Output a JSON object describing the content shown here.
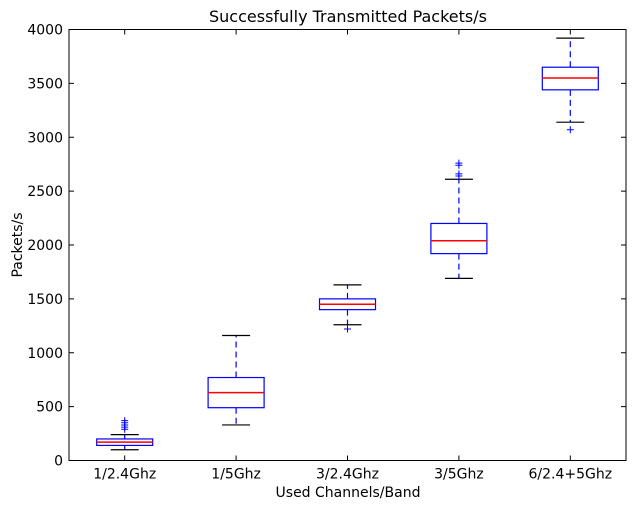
{
  "chart_data": {
    "type": "box",
    "title": "Successfully Transmitted Packets/s",
    "xlabel": "Used Channels/Band",
    "ylabel": "Packets/s",
    "ylim": [
      0,
      4000
    ],
    "yticks": [
      0,
      500,
      1000,
      1500,
      2000,
      2500,
      3000,
      3500,
      4000
    ],
    "grid": false,
    "categories": [
      "1/2.4Ghz",
      "1/5Ghz",
      "3/2.4Ghz",
      "3/5Ghz",
      "6/2.4+5Ghz"
    ],
    "boxes": [
      {
        "category": "1/2.4Ghz",
        "whisker_low": 100,
        "q1": 140,
        "median": 170,
        "q3": 200,
        "whisker_high": 240,
        "outliers": [
          290,
          310,
          330,
          350,
          370
        ]
      },
      {
        "category": "1/5Ghz",
        "whisker_low": 330,
        "q1": 490,
        "median": 630,
        "q3": 770,
        "whisker_high": 1160,
        "outliers": []
      },
      {
        "category": "3/2.4Ghz",
        "whisker_low": 1260,
        "q1": 1400,
        "median": 1450,
        "q3": 1500,
        "whisker_high": 1630,
        "outliers": [
          1220
        ]
      },
      {
        "category": "3/5Ghz",
        "whisker_low": 1690,
        "q1": 1920,
        "median": 2040,
        "q3": 2200,
        "whisker_high": 2610,
        "outliers": [
          2640,
          2660,
          2740,
          2760
        ]
      },
      {
        "category": "6/2.4+5Ghz",
        "whisker_low": 3140,
        "q1": 3440,
        "median": 3550,
        "q3": 3650,
        "whisker_high": 3920,
        "outliers": [
          3070
        ]
      }
    ],
    "colors": {
      "box": "#0000ff",
      "median": "#ff0000",
      "whisker_cap": "#000000",
      "outlier": "#0000ff"
    }
  }
}
